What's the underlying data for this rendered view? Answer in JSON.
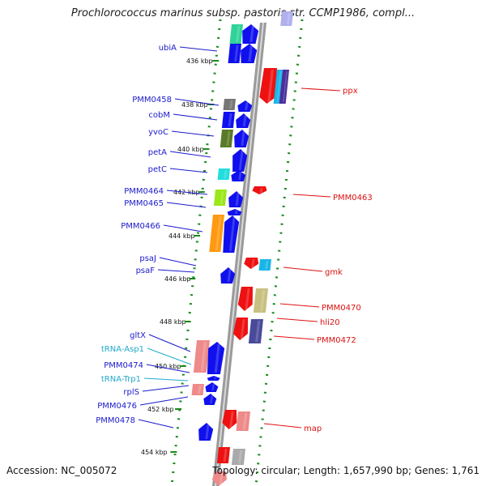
{
  "title": "Prochlorococcus marinus subsp. pastoris str. CCMP1986, compl...",
  "footer": {
    "accession": "Accession: NC_005072",
    "topology": "Topology: circular; Length: 1,657,990 bp; Genes: 1,761"
  },
  "colors": {
    "forward_label": "#1a1acc",
    "reverse_label": "#dd1111",
    "rna_label": "#22aacc",
    "dotted_lines": "#1a8a1a",
    "backbone": "#999999"
  },
  "ticks": [
    "436 kbp",
    "438 kbp",
    "440 kbp",
    "442 kbp",
    "444 kbp",
    "446 kbp",
    "448 kbp",
    "450 kbp",
    "452 kbp",
    "454 kbp"
  ],
  "forward_genes": [
    "ubiA",
    "PMM0458",
    "cobM",
    "yvoC",
    "petA",
    "petC",
    "PMM0464",
    "PMM0465",
    "PMM0466",
    "psaJ",
    "psaF",
    "gltX",
    "tRNA-Asp1",
    "PMM0474",
    "tRNA-Trp1",
    "rplS",
    "PMM0476",
    "PMM0478"
  ],
  "reverse_genes": [
    "ppx",
    "PMM0463",
    "gmk",
    "PMM0470",
    "hli20",
    "PMM0472",
    "map"
  ]
}
